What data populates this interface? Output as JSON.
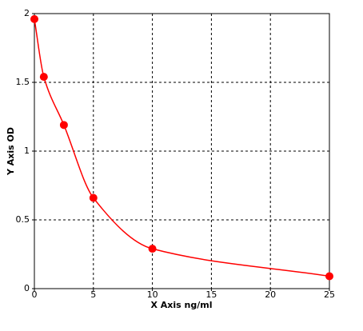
{
  "chart_data": {
    "type": "scatter",
    "x_label": "X Axis ng/ml",
    "y_label": "Y Axis OD",
    "x": [
      0,
      0.8,
      2.5,
      5,
      10,
      25
    ],
    "values": [
      1.96,
      1.54,
      1.19,
      0.66,
      0.29,
      0.09
    ],
    "color": "#ff0000",
    "trendline": true,
    "xlim": [
      0,
      25
    ],
    "xticks": [
      0,
      5,
      10,
      15,
      20,
      25
    ],
    "ylim": [
      0,
      2
    ],
    "yticks": [
      0,
      0.5,
      1,
      1.5,
      2
    ],
    "grid": true
  }
}
